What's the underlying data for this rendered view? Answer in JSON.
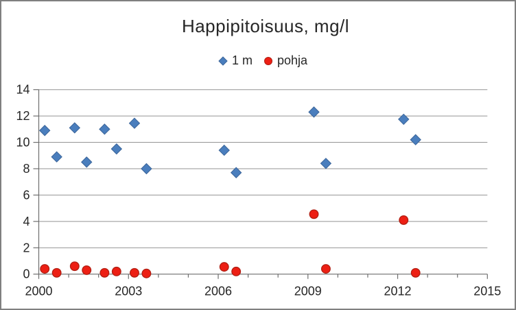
{
  "window": {
    "frame_border_color": "#7f7f7f",
    "background_color": "#ffffff"
  },
  "chart": {
    "title": "Happipitoisuus, mg/l",
    "text_color": "#262626",
    "gridline_color": "#939393",
    "axis_color": "#6e6e6e"
  },
  "chart_data": {
    "type": "scatter",
    "title": "Happipitoisuus, mg/l",
    "xlabel": "",
    "ylabel": "",
    "xlim": [
      2000,
      2015
    ],
    "ylim": [
      0,
      14
    ],
    "x_tick_labels": [
      2000,
      2003,
      2006,
      2009,
      2012,
      2015
    ],
    "x_minor_tick_step": 1,
    "y_tick_labels": [
      0,
      2,
      4,
      6,
      8,
      10,
      12,
      14
    ],
    "grid": "horizontal-major",
    "legend_position": "top-center",
    "legend": [
      {
        "label": "1 m",
        "marker": "diamond",
        "fill": "#4a7ebd",
        "stroke": "#3a6499"
      },
      {
        "label": "pohja",
        "marker": "circle",
        "fill": "#ed1f14",
        "stroke": "#b01e12"
      }
    ],
    "series": [
      {
        "name": "1 m",
        "marker": "diamond",
        "fill": "#4a7ebd",
        "stroke": "#3a6499",
        "points": [
          [
            2000.2,
            10.9
          ],
          [
            2000.6,
            8.9
          ],
          [
            2001.2,
            11.1
          ],
          [
            2001.6,
            8.5
          ],
          [
            2002.2,
            11.0
          ],
          [
            2002.6,
            9.5
          ],
          [
            2003.2,
            11.45
          ],
          [
            2003.6,
            8.0
          ],
          [
            2006.2,
            9.4
          ],
          [
            2006.6,
            7.7
          ],
          [
            2009.2,
            12.3
          ],
          [
            2009.6,
            8.4
          ],
          [
            2012.2,
            11.75
          ],
          [
            2012.6,
            10.2
          ]
        ]
      },
      {
        "name": "pohja",
        "marker": "circle",
        "fill": "#ed1f14",
        "stroke": "#b01e12",
        "points": [
          [
            2000.2,
            0.4
          ],
          [
            2000.6,
            0.1
          ],
          [
            2001.2,
            0.6
          ],
          [
            2001.6,
            0.3
          ],
          [
            2002.2,
            0.1
          ],
          [
            2002.6,
            0.2
          ],
          [
            2003.2,
            0.1
          ],
          [
            2003.6,
            0.05
          ],
          [
            2006.2,
            0.55
          ],
          [
            2006.6,
            0.2
          ],
          [
            2009.2,
            4.55
          ],
          [
            2009.6,
            0.4
          ],
          [
            2012.2,
            4.1
          ],
          [
            2012.6,
            0.1
          ]
        ]
      }
    ]
  }
}
